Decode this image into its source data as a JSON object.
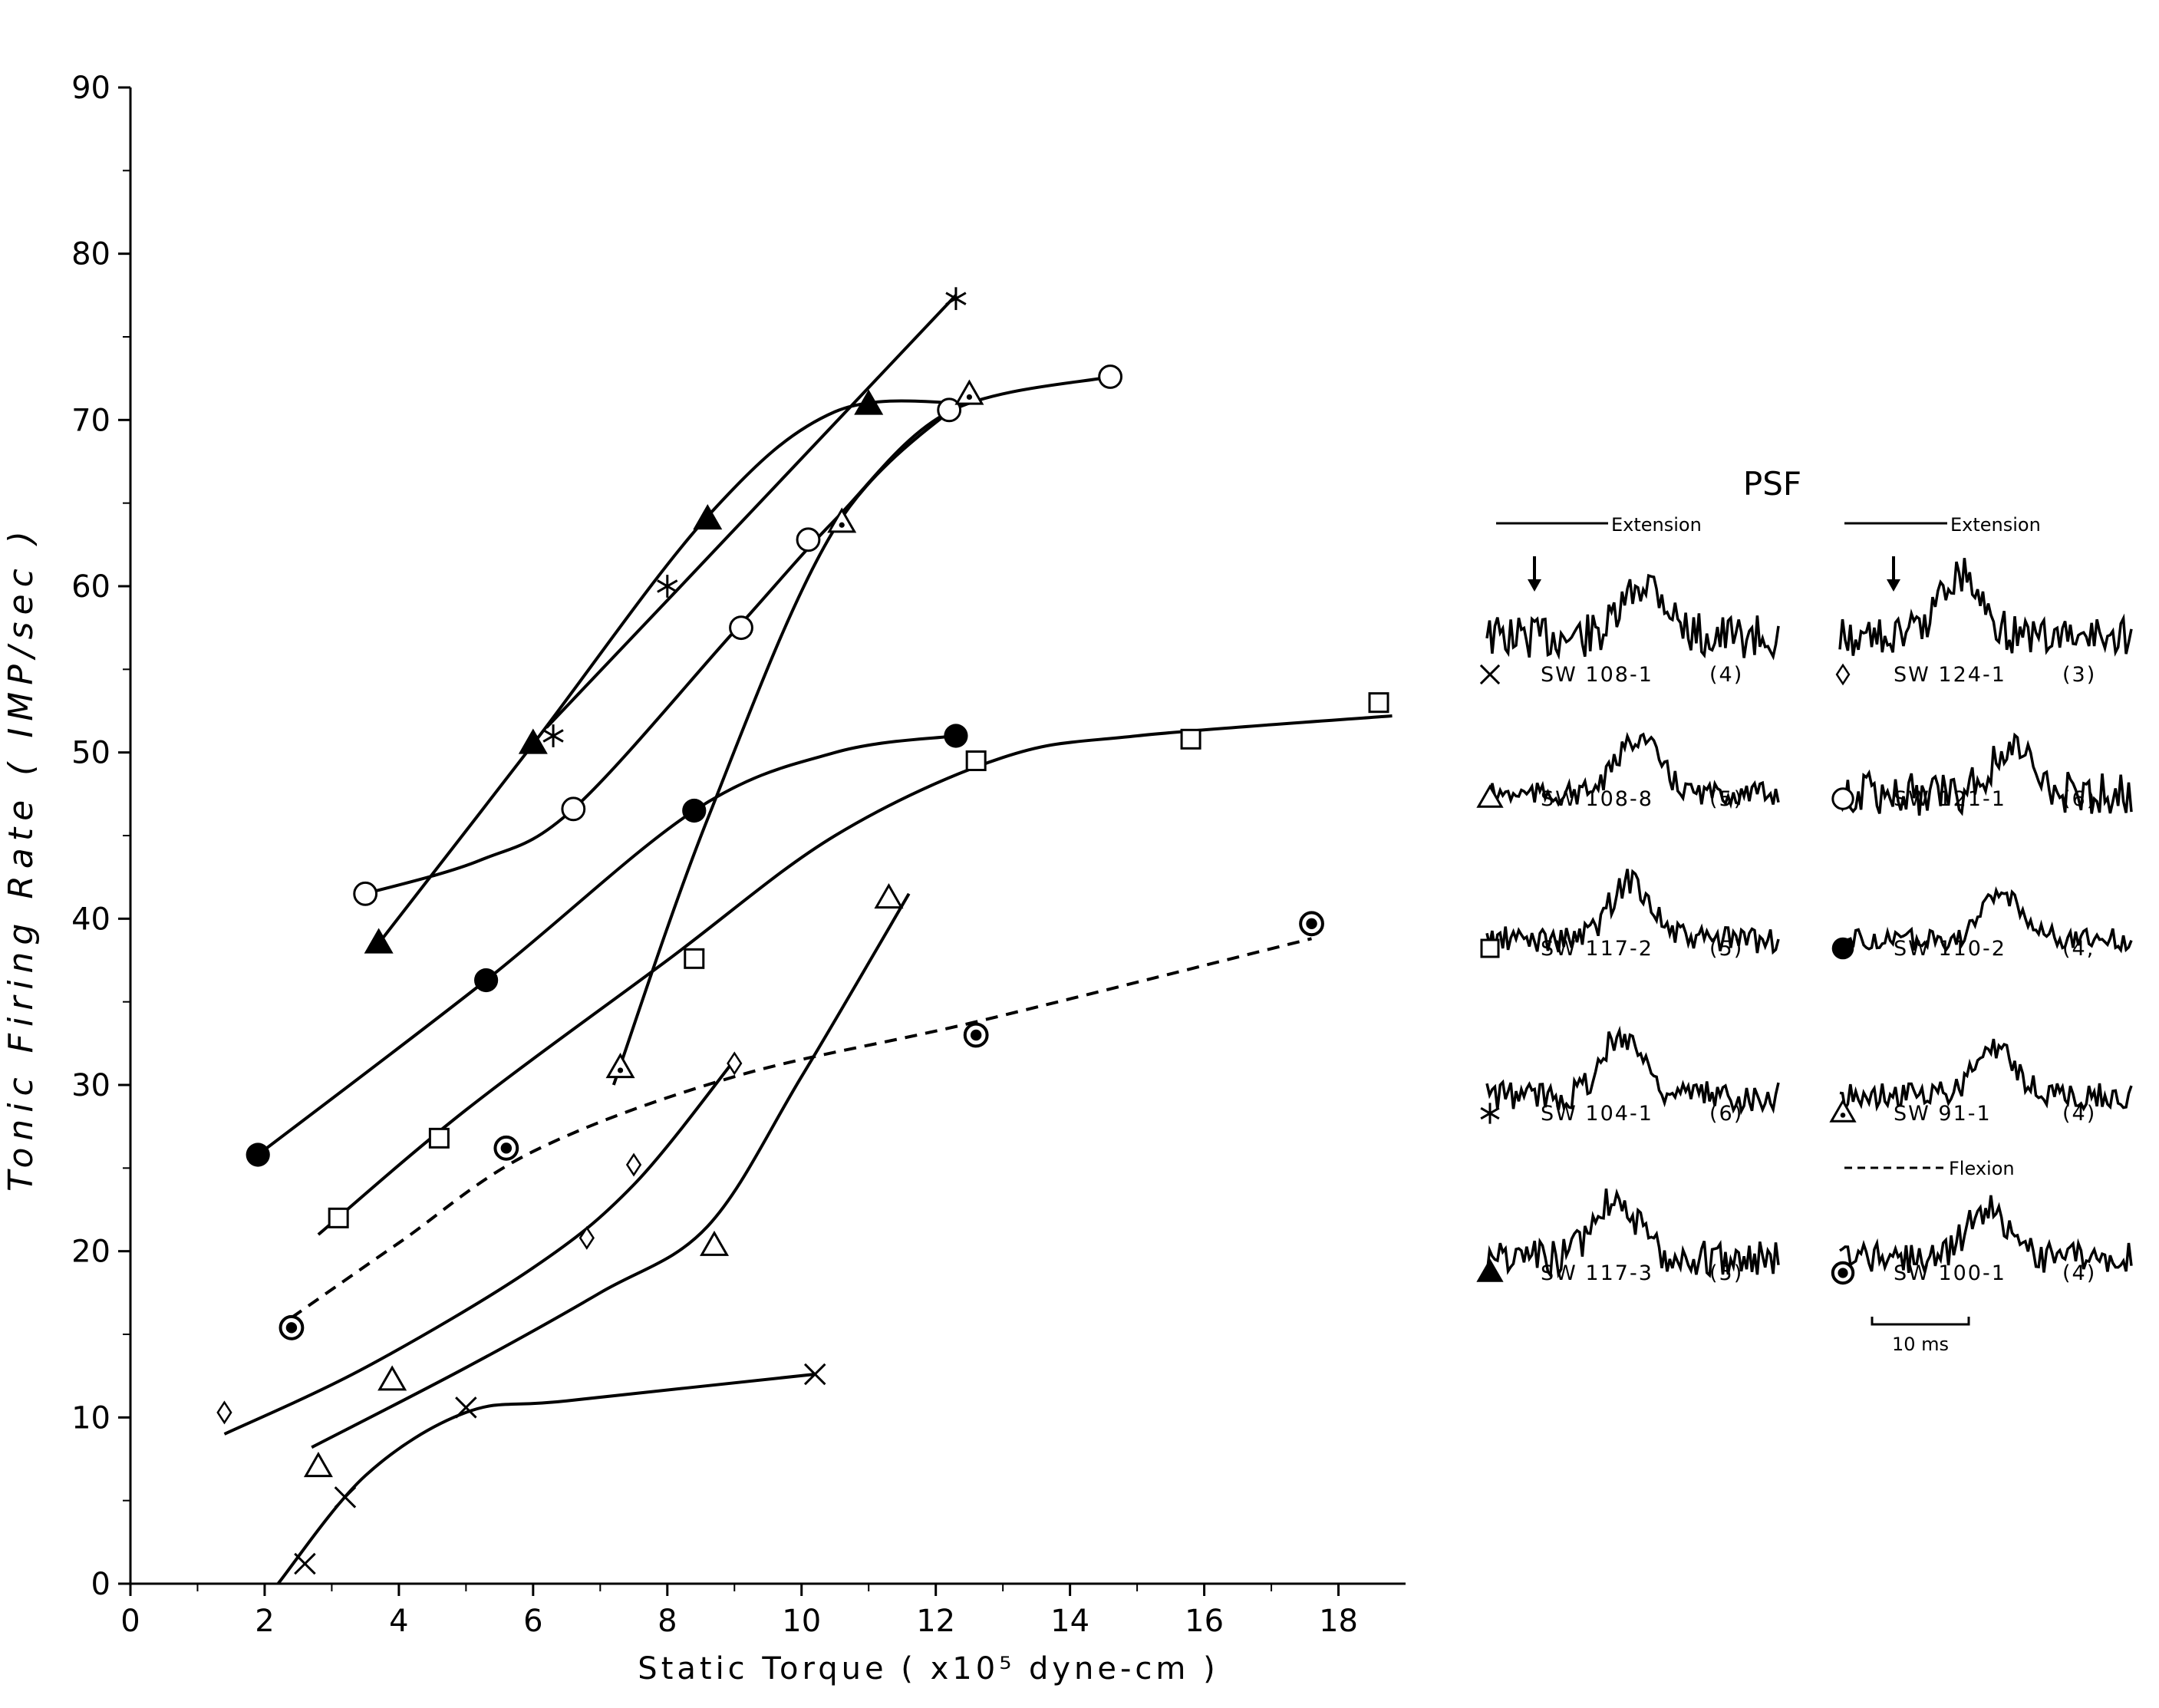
{
  "chart_data": {
    "type": "scatter",
    "title": "",
    "xlabel": "Static Torque ( x10⁵ dyne-cm )",
    "ylabel": "Tonic Firing Rate ( IMP/sec )",
    "xlim": [
      0,
      19
    ],
    "ylim": [
      0,
      90
    ],
    "xticks": [
      "0",
      "2",
      "4",
      "6",
      "8",
      "10",
      "12",
      "14",
      "16",
      "18"
    ],
    "yticks": [
      "0",
      "10",
      "20",
      "30",
      "40",
      "50",
      "60",
      "70",
      "80",
      "90"
    ],
    "grid": false,
    "legend_position": "right",
    "series": [
      {
        "name": "SW 108-1",
        "count": "(4)",
        "marker": "x",
        "trace": "extension",
        "points": [
          [
            2.6,
            1.2
          ],
          [
            3.2,
            5.2
          ],
          [
            5.0,
            10.6
          ],
          [
            10.2,
            12.6
          ]
        ],
        "curve": [
          [
            2.2,
            0
          ],
          [
            3.5,
            6.5
          ],
          [
            5.0,
            10.3
          ],
          [
            6.5,
            11.0
          ],
          [
            10.2,
            12.6
          ]
        ]
      },
      {
        "name": "SW 108-8",
        "count": "(5)",
        "marker": "triangle-open",
        "trace": "extension",
        "points": [
          [
            2.8,
            7.0
          ],
          [
            3.9,
            12.2
          ],
          [
            8.7,
            20.3
          ],
          [
            11.3,
            41.2
          ]
        ],
        "curve": [
          [
            2.7,
            8.2
          ],
          [
            5.0,
            13.0
          ],
          [
            7.0,
            17.5
          ],
          [
            8.6,
            21.5
          ],
          [
            10.0,
            30.5
          ],
          [
            11.6,
            41.5
          ]
        ]
      },
      {
        "name": "SW 117-2",
        "count": "(5)",
        "marker": "square-open",
        "trace": "extension",
        "points": [
          [
            3.1,
            22.0
          ],
          [
            4.6,
            26.8
          ],
          [
            8.4,
            37.6
          ],
          [
            12.6,
            49.5
          ],
          [
            15.8,
            50.8
          ],
          [
            18.6,
            53.0
          ]
        ],
        "curve": [
          [
            2.8,
            21.0
          ],
          [
            5.0,
            28.5
          ],
          [
            8.0,
            37.5
          ],
          [
            10.5,
            45.0
          ],
          [
            13.0,
            49.7
          ],
          [
            15.0,
            51.0
          ],
          [
            18.8,
            52.2
          ]
        ]
      },
      {
        "name": "SW 104-1",
        "count": "(6)",
        "marker": "asterisk",
        "trace": "extension",
        "points": [
          [
            6.3,
            51.0
          ],
          [
            8.0,
            60.0
          ],
          [
            12.3,
            77.3
          ]
        ],
        "curve": [
          [
            6.2,
            51.5
          ],
          [
            8.2,
            60.0
          ],
          [
            12.3,
            77.5
          ]
        ]
      },
      {
        "name": "SW 117-3",
        "count": "(5)",
        "marker": "triangle-filled",
        "trace": "extension",
        "points": [
          [
            3.7,
            38.5
          ],
          [
            6.0,
            50.5
          ],
          [
            8.6,
            64.0
          ],
          [
            11.0,
            70.9
          ]
        ],
        "curve": [
          [
            3.6,
            38.0
          ],
          [
            6.0,
            50.5
          ],
          [
            8.6,
            64.2
          ],
          [
            10.5,
            70.5
          ],
          [
            12.5,
            71.0
          ]
        ]
      },
      {
        "name": "SW 124-1",
        "count": "(3)",
        "marker": "diamond-open",
        "trace": "extension",
        "points": [
          [
            1.4,
            10.3
          ],
          [
            6.8,
            20.8
          ],
          [
            7.5,
            25.2
          ],
          [
            9.0,
            31.3
          ]
        ],
        "curve": [
          [
            1.4,
            9.0
          ],
          [
            3.5,
            13.0
          ],
          [
            6.0,
            19.0
          ],
          [
            7.5,
            24.0
          ],
          [
            9.0,
            31.5
          ]
        ]
      },
      {
        "name": "SW 121-1",
        "count": "(6)",
        "marker": "circle-open",
        "trace": "extension",
        "points": [
          [
            3.5,
            41.5
          ],
          [
            6.6,
            46.6
          ],
          [
            9.1,
            57.5
          ],
          [
            10.1,
            62.8
          ],
          [
            12.2,
            70.6
          ],
          [
            14.6,
            72.6
          ]
        ],
        "curve": [
          [
            3.5,
            41.5
          ],
          [
            5.2,
            43.5
          ],
          [
            6.6,
            46.6
          ],
          [
            9.0,
            57.3
          ],
          [
            10.5,
            64.0
          ],
          [
            12.2,
            70.5
          ],
          [
            14.6,
            72.6
          ]
        ]
      },
      {
        "name": "SW 110-2",
        "count": "(4,",
        "marker": "circle-filled",
        "trace": "extension",
        "points": [
          [
            1.9,
            25.8
          ],
          [
            5.3,
            36.3
          ],
          [
            8.4,
            46.5
          ],
          [
            12.3,
            51.0
          ]
        ],
        "curve": [
          [
            1.9,
            25.8
          ],
          [
            5.3,
            36.3
          ],
          [
            8.4,
            46.5
          ],
          [
            10.5,
            50.0
          ],
          [
            12.3,
            51.0
          ]
        ]
      },
      {
        "name": "SW 91-1",
        "count": "(4)",
        "marker": "triangle-dot",
        "trace": "extension",
        "points": [
          [
            7.3,
            31.0
          ],
          [
            10.6,
            63.8
          ],
          [
            12.5,
            71.5
          ]
        ],
        "curve": [
          [
            7.2,
            30.0
          ],
          [
            8.6,
            46.0
          ],
          [
            10.5,
            63.5
          ],
          [
            12.5,
            71.5
          ]
        ]
      },
      {
        "name": "SW 100-1",
        "count": "(4)",
        "marker": "circle-dot",
        "trace": "flexion",
        "points": [
          [
            2.4,
            15.4
          ],
          [
            5.6,
            26.2
          ],
          [
            12.6,
            33.0
          ],
          [
            17.6,
            39.7
          ]
        ],
        "curve": [
          [
            2.4,
            16.0
          ],
          [
            4.0,
            20.5
          ],
          [
            6.0,
            26.0
          ],
          [
            9.0,
            30.5
          ],
          [
            12.6,
            33.8
          ],
          [
            17.6,
            38.8
          ]
        ]
      }
    ]
  },
  "psf": {
    "title": "PSF",
    "header_extension_left": "Extension",
    "header_extension_right": "Extension",
    "header_flexion": "Flexion",
    "scale_label": "10 ms"
  }
}
